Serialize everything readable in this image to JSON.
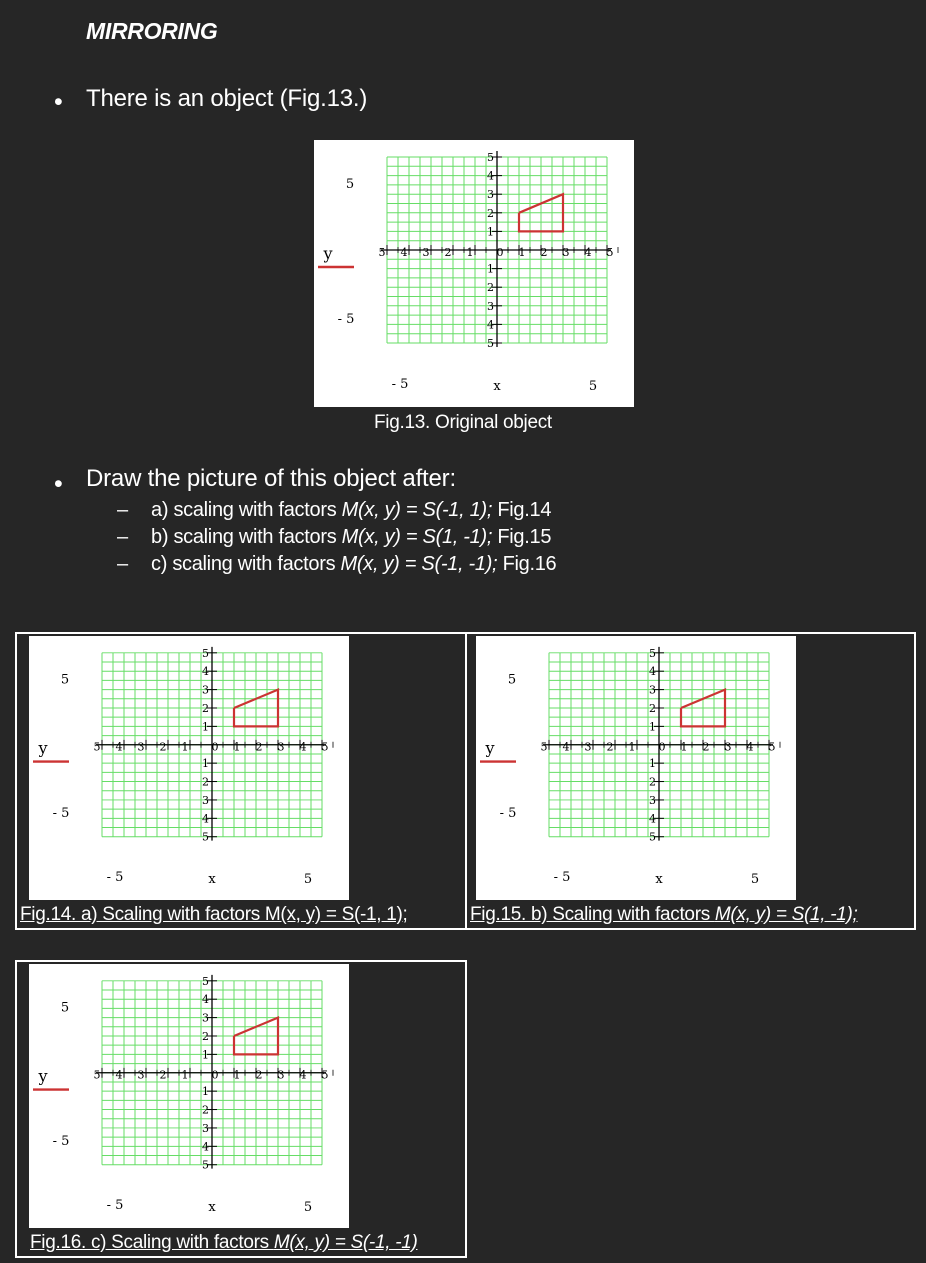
{
  "heading": "MIRRORING",
  "bullet_symbol": "•",
  "bullet1": "There is an object (Fig.13.)",
  "bullet2": "Draw the picture of this object after:",
  "subitems": [
    {
      "dash": "–",
      "text": "a) scaling with factors ",
      "formula": "M(x, y) = S(-1, 1);",
      "ref": " Fig.14"
    },
    {
      "dash": "–",
      "text": "b) scaling with factors ",
      "formula": "M(x, y) = S(1, -1);",
      "ref": " Fig.15"
    },
    {
      "dash": "–",
      "text": "c) scaling with factors ",
      "formula": "M(x, y) = S(-1, -1);",
      "ref": " Fig.16"
    }
  ],
  "captions": {
    "fig13": "Fig.13. Original object",
    "fig14": "Fig.14. a) Scaling with factors M(x, y) = S(-1, 1);",
    "fig15_prefix": "Fig.15. b) Scaling with factors ",
    "fig15_formula": "M(x, y) = S(1, -1);",
    "fig16_prefix": "Fig.16. c) Scaling with factors ",
    "fig16_formula": "M(x, y) = S(-1, -1)"
  },
  "plot": {
    "y_label": "y",
    "x_label": "x",
    "y_max_label": "5",
    "y_min_label": "- 5",
    "x_min_label": "- 5",
    "x_max_label": "5",
    "grid_color": "#66dd66",
    "shape_color": "#cc3333",
    "legend_line_color": "#cc3333"
  },
  "chart_data": {
    "type": "line",
    "x_range": [
      -5,
      5
    ],
    "y_range": [
      -5,
      5
    ],
    "x_ticks": [
      -5,
      -4,
      -3,
      -2,
      -1,
      0,
      1,
      2,
      3,
      4,
      5
    ],
    "y_ticks": [
      -5,
      -4,
      -3,
      -2,
      -1,
      1,
      2,
      3,
      4,
      5
    ],
    "grid": true,
    "series": [
      {
        "x": [
          1,
          3,
          3,
          1,
          1
        ],
        "y": [
          2,
          3,
          1,
          1,
          2
        ]
      }
    ]
  }
}
